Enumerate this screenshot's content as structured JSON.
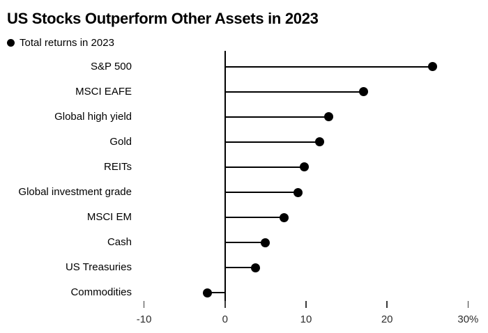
{
  "chart_data": {
    "type": "lollipop",
    "orientation": "horizontal",
    "title": "US Stocks Outperform Other Assets in 2023",
    "legend_label": "Total returns in 2023",
    "legend_position": "top-left",
    "categories": [
      "S&P 500",
      "MSCI EAFE",
      "Global high yield",
      "Gold",
      "REITs",
      "Global investment grade",
      "MSCI EM",
      "Cash",
      "US Treasuries",
      "Commodities"
    ],
    "values": [
      25.6,
      17.1,
      12.8,
      11.7,
      9.8,
      9.0,
      7.3,
      5.0,
      3.8,
      -2.2
    ],
    "unit": "%",
    "xlabel": "",
    "ylabel": "",
    "xlim": [
      -10,
      30
    ],
    "x_ticks": [
      -10,
      0,
      10,
      20,
      30
    ],
    "x_tick_labels": [
      "-10",
      "0",
      "10",
      "20",
      "30%"
    ],
    "grid": false,
    "colors": {
      "dot": "#000000",
      "stem": "#000000",
      "axis": "#000000",
      "tick": "#3a3a3a",
      "tick_label": "#2e2e2e",
      "category_label": "#000000",
      "background": "#ffffff"
    }
  }
}
